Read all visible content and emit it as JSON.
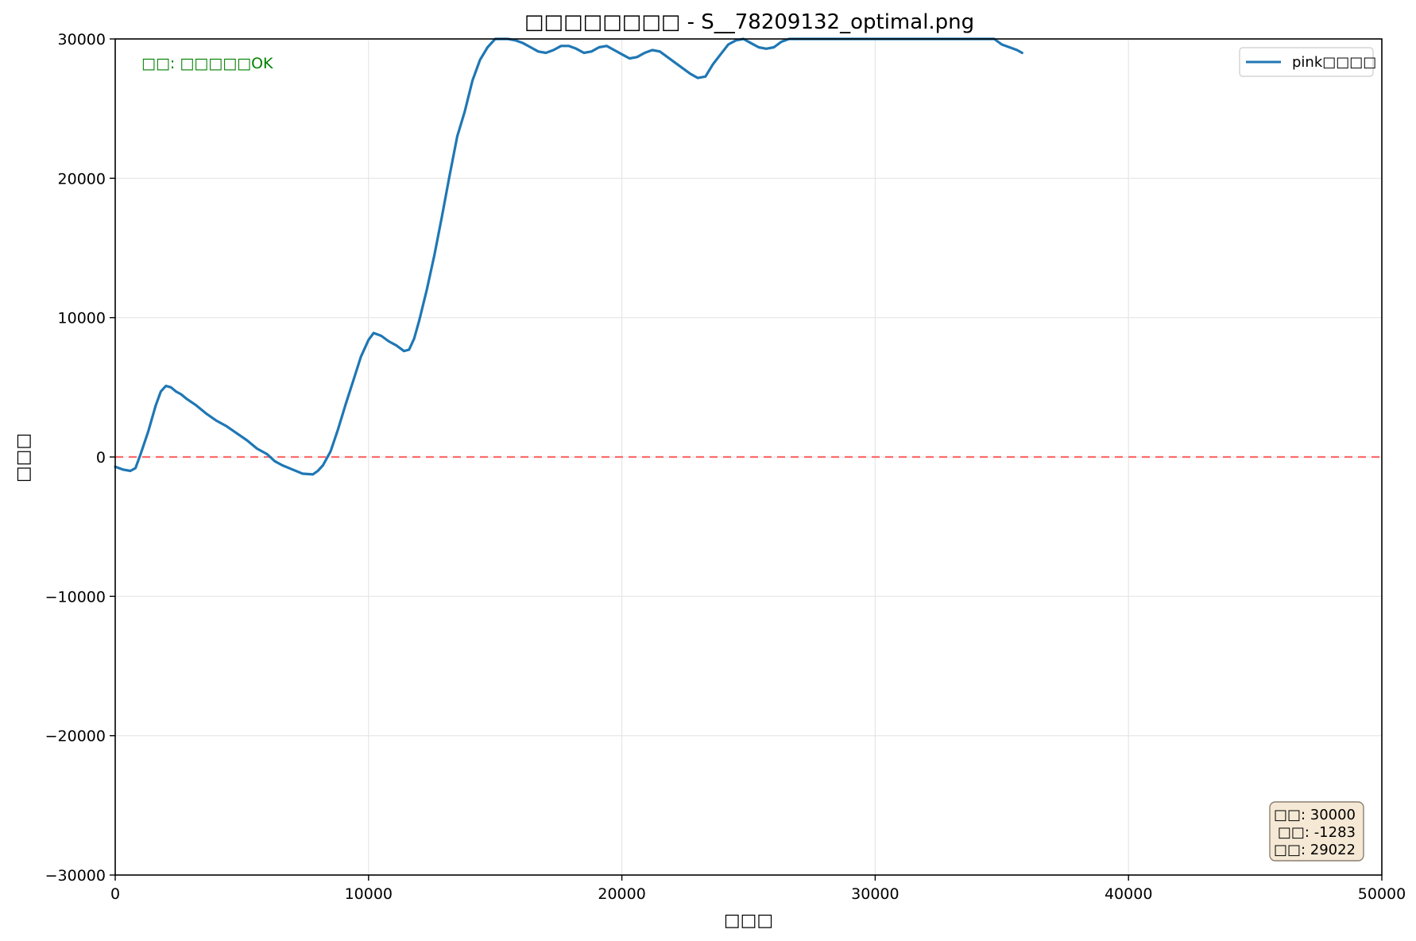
{
  "chart_data": {
    "type": "line",
    "title": "□□□□□□□□ - S__78209132_optimal.png",
    "xlabel": "□□□",
    "ylabel": "□□□",
    "xlim": [
      0,
      50000
    ],
    "ylim": [
      -30000,
      30000
    ],
    "x_ticks": [
      0,
      10000,
      20000,
      30000,
      40000,
      50000
    ],
    "y_ticks": [
      -30000,
      -20000,
      -10000,
      0,
      10000,
      20000,
      30000
    ],
    "x_tick_labels": [
      "0",
      "10000",
      "20000",
      "30000",
      "40000",
      "50000"
    ],
    "y_tick_labels": [
      "−30000",
      "−20000",
      "−10000",
      "0",
      "10000",
      "20000",
      "30000"
    ],
    "grid": true,
    "legend_position": "upper-right",
    "series": [
      {
        "name": "pink□□□□",
        "color": "#1f77b4",
        "x": [
          0,
          300,
          600,
          800,
          1000,
          1300,
          1600,
          1800,
          2000,
          2200,
          2400,
          2600,
          2800,
          3200,
          3600,
          4000,
          4400,
          4800,
          5200,
          5600,
          6000,
          6300,
          6600,
          7000,
          7400,
          7800,
          8000,
          8200,
          8500,
          8800,
          9100,
          9400,
          9700,
          10000,
          10200,
          10500,
          10800,
          11100,
          11400,
          11600,
          11800,
          12000,
          12300,
          12600,
          12900,
          13200,
          13500,
          13800,
          14100,
          14400,
          14700,
          15000,
          15200,
          15500,
          15800,
          16100,
          16400,
          16700,
          17000,
          17300,
          17600,
          17900,
          18200,
          18500,
          18800,
          19100,
          19400,
          19700,
          20000,
          20300,
          20600,
          20900,
          21200,
          21500,
          21800,
          22100,
          22400,
          22700,
          23000,
          23300,
          23600,
          23900,
          24200,
          24500,
          24800,
          25100,
          25400,
          25700,
          26000,
          26300,
          26600,
          27000,
          28000,
          29000,
          30000,
          31000,
          32000,
          33000,
          34000,
          34700,
          35000,
          35300,
          35600,
          35800
        ],
        "y": [
          -700,
          -900,
          -1000,
          -800,
          200,
          1800,
          3700,
          4700,
          5100,
          5000,
          4700,
          4500,
          4200,
          3700,
          3100,
          2600,
          2200,
          1700,
          1200,
          600,
          200,
          -300,
          -600,
          -900,
          -1200,
          -1250,
          -1000,
          -600,
          400,
          2000,
          3800,
          5500,
          7200,
          8400,
          8900,
          8700,
          8300,
          8000,
          7600,
          7700,
          8500,
          9800,
          12000,
          14500,
          17300,
          20200,
          23000,
          24800,
          27000,
          28500,
          29400,
          30000,
          30000,
          30000,
          29900,
          29700,
          29400,
          29100,
          29000,
          29200,
          29500,
          29500,
          29300,
          29000,
          29100,
          29400,
          29500,
          29200,
          28900,
          28600,
          28700,
          29000,
          29200,
          29100,
          28700,
          28300,
          27900,
          27500,
          27200,
          27300,
          28200,
          28900,
          29600,
          29900,
          30000,
          29700,
          29400,
          29300,
          29400,
          29800,
          30000,
          30000,
          30000,
          30000,
          30000,
          30000,
          30000,
          30000,
          30000,
          30000,
          29600,
          29400,
          29200,
          29000
        ]
      }
    ],
    "reference_line": {
      "y": 0,
      "color": "#ff5555"
    },
    "status_annotation": {
      "text": "□□: □□□□□OK",
      "color": "#008000",
      "position": "top-left"
    },
    "stats_box": {
      "lines": [
        "□□: 30000",
        "□□: -1283",
        "□□: 29022"
      ],
      "position": "bottom-right",
      "background": "#f5e9d5"
    }
  }
}
